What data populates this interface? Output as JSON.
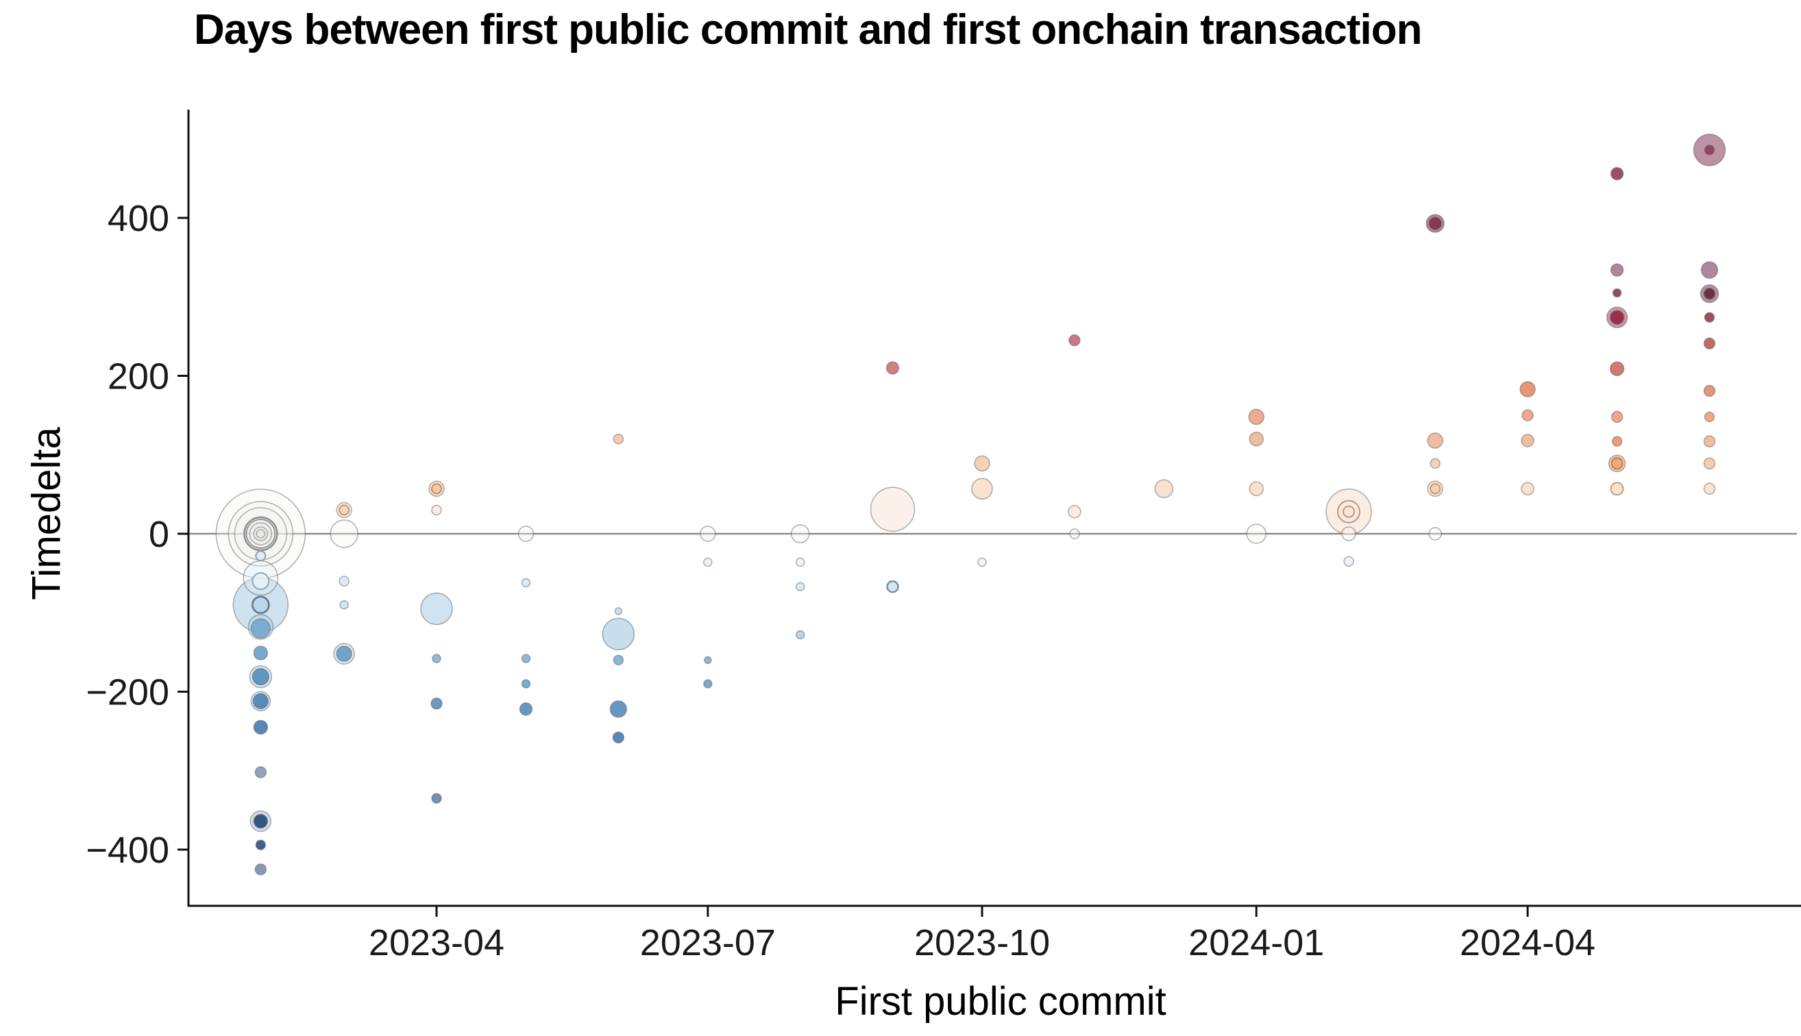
{
  "title": "Days between first public commit and first onchain transaction",
  "axes": {
    "xlabel": "First public commit",
    "ylabel": "Timedelta",
    "x_ticks": [
      {
        "label": "2023-04",
        "date": "2023-04-01"
      },
      {
        "label": "2023-07",
        "date": "2023-07-01"
      },
      {
        "label": "2023-10",
        "date": "2023-10-01"
      },
      {
        "label": "2024-01",
        "date": "2024-01-01"
      },
      {
        "label": "2024-04",
        "date": "2024-04-01"
      }
    ],
    "y_ticks": [
      {
        "label": "400",
        "value": 400
      },
      {
        "label": "200",
        "value": 200
      },
      {
        "label": "0",
        "value": 0
      },
      {
        "label": "−200",
        "value": -200
      },
      {
        "label": "−400",
        "value": -400
      }
    ],
    "zero_line": true
  },
  "chart_data": {
    "type": "scatter",
    "title": "Days between first public commit and first onchain transaction",
    "xlabel": "First public commit",
    "ylabel": "Timedelta",
    "x_range": [
      "2023-01-15",
      "2024-06-20"
    ],
    "ylim": [
      -470,
      540
    ],
    "grid": false,
    "legend": "none",
    "colors": {
      "negative": "blues",
      "positive": "reds",
      "near_zero": "#f4f3f1"
    },
    "points": [
      {
        "month": "2023-02-01",
        "value": 0,
        "r": 65,
        "color": "#f4f3f1",
        "hollow": true
      },
      {
        "month": "2023-02-01",
        "value": 0,
        "r": 47,
        "color": "#f4f3f1",
        "hollow": true
      },
      {
        "month": "2023-02-01",
        "value": 0,
        "r": 38,
        "color": "#f2f1ef",
        "hollow": true
      },
      {
        "month": "2023-02-01",
        "value": 0,
        "r": 24,
        "color": "#f0efed",
        "hollow": true,
        "sw": 2.5,
        "sc": "#8c8c8c"
      },
      {
        "month": "2023-02-01",
        "value": 0,
        "r": 21,
        "color": "#f0efed",
        "hollow": true,
        "sw": 2,
        "sc": "#939393"
      },
      {
        "month": "2023-02-01",
        "value": 0,
        "r": 16,
        "color": "#eeedeb",
        "hollow": true
      },
      {
        "month": "2023-02-01",
        "value": 0,
        "r": 10,
        "color": "#ecebe9",
        "hollow": true
      },
      {
        "month": "2023-02-01",
        "value": 0,
        "r": 6,
        "color": "#eae9e7",
        "hollow": true
      },
      {
        "month": "2023-02-01",
        "value": -28,
        "r": 7,
        "color": "#dcebf4",
        "sw": 2,
        "sc": "#8aa0b0"
      },
      {
        "month": "2023-02-01",
        "value": -56,
        "r": 25,
        "color": "#e0edf5",
        "hollow": true
      },
      {
        "month": "2023-02-01",
        "value": -60,
        "r": 12,
        "color": "#e6f0f7",
        "sw": 2,
        "sc": "#93a5b3"
      },
      {
        "month": "2023-02-01",
        "value": -90,
        "r": 40,
        "color": "#c6dded"
      },
      {
        "month": "2023-02-01",
        "value": -90,
        "r": 12,
        "color": "#b7d3e8",
        "sw": 2.5,
        "sc": "#5f7487"
      },
      {
        "month": "2023-02-01",
        "value": -118,
        "r": 18,
        "color": "#a5c9e2",
        "hollow": true
      },
      {
        "month": "2023-02-01",
        "value": -120,
        "r": 14,
        "color": "#6ca4cd"
      },
      {
        "month": "2023-02-01",
        "value": -151,
        "r": 10,
        "color": "#5e9ac6"
      },
      {
        "month": "2023-02-01",
        "value": -181,
        "r": 16,
        "color": "#8fb8d8",
        "hollow": true
      },
      {
        "month": "2023-02-01",
        "value": -181,
        "r": 12,
        "color": "#4c87b9"
      },
      {
        "month": "2023-02-01",
        "value": -212,
        "r": 14,
        "color": "#86b1d3",
        "hollow": true
      },
      {
        "month": "2023-02-01",
        "value": -212,
        "r": 11,
        "color": "#417cb0"
      },
      {
        "month": "2023-02-01",
        "value": -245,
        "r": 10,
        "color": "#3a74ab"
      },
      {
        "month": "2023-02-01",
        "value": -302,
        "r": 8,
        "color": "#7e92b0"
      },
      {
        "month": "2023-02-01",
        "value": -364,
        "r": 15,
        "color": "#7f9cc0",
        "hollow": true
      },
      {
        "month": "2023-02-01",
        "value": -364,
        "r": 10,
        "color": "#16406f"
      },
      {
        "month": "2023-02-01",
        "value": -394,
        "r": 7,
        "color": "#1d4678"
      },
      {
        "month": "2023-02-01",
        "value": -425,
        "r": 8,
        "color": "#7487a6"
      },
      {
        "month": "2023-03-01",
        "value": 30,
        "r": 11,
        "color": "#f9e4d4"
      },
      {
        "month": "2023-03-01",
        "value": 30,
        "r": 7,
        "color": "#f5d3b9",
        "sw": 2,
        "sc": "#c09878"
      },
      {
        "month": "2023-03-01",
        "value": 0,
        "r": 20,
        "color": "#f4f3f1",
        "hollow": true
      },
      {
        "month": "2023-03-01",
        "value": -60,
        "r": 7,
        "color": "#d9e8f2"
      },
      {
        "month": "2023-03-01",
        "value": -90,
        "r": 6,
        "color": "#cde1ef"
      },
      {
        "month": "2023-03-01",
        "value": -152,
        "r": 15,
        "color": "#9cc1dd",
        "hollow": true
      },
      {
        "month": "2023-03-01",
        "value": -152,
        "r": 11,
        "color": "#5e97c3"
      },
      {
        "month": "2023-04-01",
        "value": 57,
        "r": 11,
        "color": "#f8dcc6"
      },
      {
        "month": "2023-04-01",
        "value": 57,
        "r": 7,
        "color": "#f3c5a4",
        "sw": 2,
        "sc": "#bf9070"
      },
      {
        "month": "2023-04-01",
        "value": 30,
        "r": 7,
        "color": "#fae7d9"
      },
      {
        "month": "2023-04-01",
        "value": -95,
        "r": 23,
        "color": "#c8deee"
      },
      {
        "month": "2023-04-01",
        "value": -158,
        "r": 6,
        "color": "#7aaed1"
      },
      {
        "month": "2023-04-01",
        "value": -215,
        "r": 8,
        "color": "#4d87b7"
      },
      {
        "month": "2023-04-01",
        "value": -335,
        "r": 7,
        "color": "#5c7ba5"
      },
      {
        "month": "2023-05-01",
        "value": 0,
        "r": 11,
        "color": "#f4f3f1",
        "hollow": true
      },
      {
        "month": "2023-05-01",
        "value": -62,
        "r": 6,
        "color": "#d8e7f2"
      },
      {
        "month": "2023-05-01",
        "value": -158,
        "r": 6,
        "color": "#79add0"
      },
      {
        "month": "2023-05-01",
        "value": -190,
        "r": 6,
        "color": "#639bc6"
      },
      {
        "month": "2023-05-01",
        "value": -222,
        "r": 9,
        "color": "#4d86b6"
      },
      {
        "month": "2023-06-01",
        "value": 120,
        "r": 7,
        "color": "#f3c4a4"
      },
      {
        "month": "2023-06-01",
        "value": -98,
        "r": 5,
        "color": "#c2daec"
      },
      {
        "month": "2023-06-01",
        "value": -127,
        "r": 23,
        "color": "#bdd8ea"
      },
      {
        "month": "2023-06-01",
        "value": -160,
        "r": 7,
        "color": "#77abd0"
      },
      {
        "month": "2023-06-01",
        "value": -222,
        "r": 12,
        "color": "#4e86b6"
      },
      {
        "month": "2023-06-01",
        "value": -258,
        "r": 8,
        "color": "#3a74aa"
      },
      {
        "month": "2023-07-01",
        "value": 0,
        "r": 11,
        "color": "#f4f3f1",
        "hollow": true
      },
      {
        "month": "2023-07-01",
        "value": -36,
        "r": 6,
        "color": "#e9f1f7"
      },
      {
        "month": "2023-07-01",
        "value": -160,
        "r": 5,
        "color": "#77abd0"
      },
      {
        "month": "2023-07-01",
        "value": -190,
        "r": 6,
        "color": "#639bc6"
      },
      {
        "month": "2023-08-01",
        "value": 0,
        "r": 13,
        "color": "#f4f3f1",
        "hollow": true
      },
      {
        "month": "2023-08-01",
        "value": -36,
        "r": 6,
        "color": "#ebf2f8"
      },
      {
        "month": "2023-08-01",
        "value": -67,
        "r": 6,
        "color": "#d6e6f1"
      },
      {
        "month": "2023-08-01",
        "value": -128,
        "r": 6,
        "color": "#a9cde4"
      },
      {
        "month": "2023-09-01",
        "value": 210,
        "r": 9,
        "color": "#c96868"
      },
      {
        "month": "2023-09-01",
        "value": 31,
        "r": 32,
        "color": "#faeee6"
      },
      {
        "month": "2023-09-01",
        "value": -67,
        "r": 8,
        "color": "#cfe0ed",
        "sw": 2.5,
        "sc": "#7d8f9d"
      },
      {
        "month": "2023-10-01",
        "value": 89,
        "r": 11,
        "color": "#f5c8ab"
      },
      {
        "month": "2023-10-01",
        "value": 57,
        "r": 15,
        "color": "#f9dcc8"
      },
      {
        "month": "2023-10-01",
        "value": -36,
        "r": 6,
        "color": "#eef3f8"
      },
      {
        "month": "2023-11-01",
        "value": 245,
        "r": 8,
        "color": "#c06270"
      },
      {
        "month": "2023-11-01",
        "value": 28,
        "r": 9,
        "color": "#fae9dd"
      },
      {
        "month": "2023-11-01",
        "value": 0,
        "r": 7,
        "color": "#f4f3f1",
        "hollow": true
      },
      {
        "month": "2023-12-01",
        "value": 57,
        "r": 13,
        "color": "#f8dcc7"
      },
      {
        "month": "2024-01-01",
        "value": 148,
        "r": 11,
        "color": "#ec9d79"
      },
      {
        "month": "2024-01-01",
        "value": 120,
        "r": 10,
        "color": "#f0b28e"
      },
      {
        "month": "2024-01-01",
        "value": 57,
        "r": 10,
        "color": "#f8dcc7"
      },
      {
        "month": "2024-01-01",
        "value": 0,
        "r": 14,
        "color": "#f4f3f1",
        "hollow": true
      },
      {
        "month": "2024-02-01",
        "value": 28,
        "r": 33,
        "color": "#fbeade"
      },
      {
        "month": "2024-02-01",
        "value": 28,
        "r": 16,
        "color": "#f8e2d3",
        "hollow": true,
        "sw": 2,
        "sc": "#b9998a"
      },
      {
        "month": "2024-02-01",
        "value": 28,
        "r": 8,
        "color": "#f7ddcb",
        "hollow": true,
        "sw": 2,
        "sc": "#b9998a"
      },
      {
        "month": "2024-02-01",
        "value": 0,
        "r": 10,
        "color": "#f4f3f1",
        "hollow": true
      },
      {
        "month": "2024-02-01",
        "value": -35,
        "r": 7,
        "color": "#e9f0f6"
      },
      {
        "month": "2024-03-01",
        "value": 393,
        "r": 13,
        "color": "#a86f85"
      },
      {
        "month": "2024-03-01",
        "value": 393,
        "r": 9,
        "color": "#7c2b47"
      },
      {
        "month": "2024-03-01",
        "value": 118,
        "r": 11,
        "color": "#f0b18d"
      },
      {
        "month": "2024-03-01",
        "value": 89,
        "r": 7,
        "color": "#f5c8aa"
      },
      {
        "month": "2024-03-01",
        "value": 57,
        "r": 11,
        "color": "#f8dcc6"
      },
      {
        "month": "2024-03-01",
        "value": 57,
        "r": 7,
        "color": "#f3cdb0",
        "sw": 2,
        "sc": "#bf9d85"
      },
      {
        "month": "2024-03-01",
        "value": 0,
        "r": 9,
        "color": "#f4f3f1",
        "hollow": true
      },
      {
        "month": "2024-04-01",
        "value": 183,
        "r": 11,
        "color": "#e2825f"
      },
      {
        "month": "2024-04-01",
        "value": 150,
        "r": 8,
        "color": "#ea9a74"
      },
      {
        "month": "2024-04-01",
        "value": 118,
        "r": 9,
        "color": "#f0b18d"
      },
      {
        "month": "2024-04-01",
        "value": 57,
        "r": 9,
        "color": "#f8dcc6"
      },
      {
        "month": "2024-05-01",
        "value": 456,
        "r": 9,
        "color": "#8c3049"
      },
      {
        "month": "2024-05-01",
        "value": 334,
        "r": 9,
        "color": "#a1718a"
      },
      {
        "month": "2024-05-01",
        "value": 305,
        "r": 6,
        "color": "#7d2e49"
      },
      {
        "month": "2024-05-01",
        "value": 274,
        "r": 15,
        "color": "#c4849a"
      },
      {
        "month": "2024-05-01",
        "value": 274,
        "r": 10,
        "color": "#8e1e3c"
      },
      {
        "month": "2024-05-01",
        "value": 209,
        "r": 10,
        "color": "#cb5f56"
      },
      {
        "month": "2024-05-01",
        "value": 148,
        "r": 8,
        "color": "#ea9a74"
      },
      {
        "month": "2024-05-01",
        "value": 117,
        "r": 7,
        "color": "#e78d5e"
      },
      {
        "month": "2024-05-01",
        "value": 89,
        "r": 12,
        "color": "#f2bd9b"
      },
      {
        "month": "2024-05-01",
        "value": 89,
        "r": 8,
        "color": "#eca374",
        "sw": 2,
        "sc": "#bb7f58"
      },
      {
        "month": "2024-05-01",
        "value": 57,
        "r": 9,
        "color": "#f8dcc6",
        "sw": 2,
        "sc": "#bf9d85"
      },
      {
        "month": "2024-06-01",
        "value": 486,
        "r": 23,
        "color": "#b17f94"
      },
      {
        "month": "2024-06-01",
        "value": 486,
        "r": 7,
        "color": "#8e3656"
      },
      {
        "month": "2024-06-01",
        "value": 334,
        "r": 12,
        "color": "#a1718a"
      },
      {
        "month": "2024-06-01",
        "value": 304,
        "r": 13,
        "color": "#aa7b90"
      },
      {
        "month": "2024-06-01",
        "value": 304,
        "r": 8,
        "color": "#5f2038"
      },
      {
        "month": "2024-06-01",
        "value": 274,
        "r": 7,
        "color": "#8f2f47"
      },
      {
        "month": "2024-06-01",
        "value": 241,
        "r": 8,
        "color": "#b8504f"
      },
      {
        "month": "2024-06-01",
        "value": 181,
        "r": 8,
        "color": "#e2825f"
      },
      {
        "month": "2024-06-01",
        "value": 148,
        "r": 7,
        "color": "#ea9a74"
      },
      {
        "month": "2024-06-01",
        "value": 117,
        "r": 8,
        "color": "#f0b18d"
      },
      {
        "month": "2024-06-01",
        "value": 89,
        "r": 8,
        "color": "#f4c3a2"
      },
      {
        "month": "2024-06-01",
        "value": 57,
        "r": 8,
        "color": "#f9e0cd"
      }
    ]
  }
}
